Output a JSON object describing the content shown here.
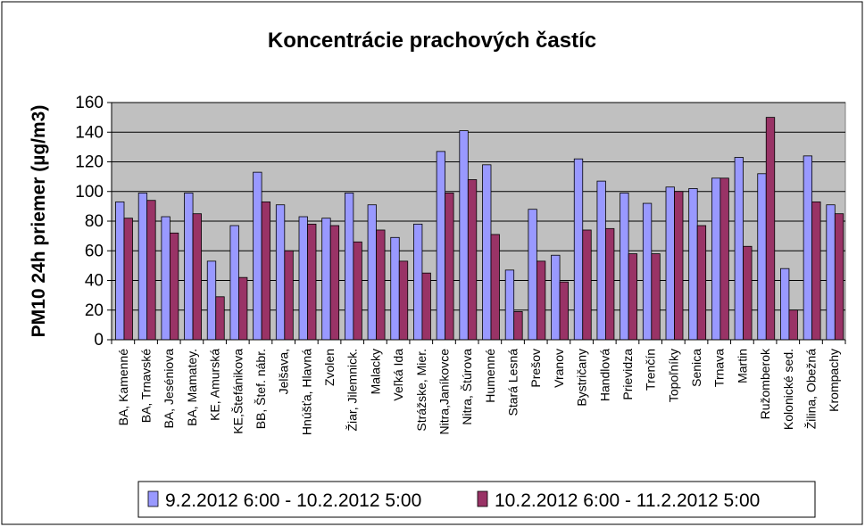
{
  "chart_data": {
    "type": "bar",
    "title": "Koncentrácie prachových častíc",
    "xlabel": "",
    "ylabel": "PM10 24h priemer (µg/m3)",
    "ylim": [
      0,
      160
    ],
    "yticks": [
      "0",
      "20",
      "40",
      "60",
      "80",
      "100",
      "120",
      "140",
      "160"
    ],
    "grid": true,
    "legend_position": "bottom",
    "categories": [
      "BA, Kamenné",
      "BA, Trnavské",
      "BA, Jeséniova",
      "BA, Mamatey.",
      "KE, Amurská",
      "KE,Štefánikova",
      "BB, Štef. nábr.",
      "Jelšava,",
      "Hnúšťa, Hlavná",
      "Zvolen",
      "Žiar, Jilemnick.",
      "Malacky",
      "Veľká Ida",
      "Strážske, Mier.",
      "Nitra,Janíkovce",
      "Nitra, Štúrova",
      "Humenné",
      "Stará Lesná",
      "Prešov",
      "Vranov",
      "Bystričany",
      "Handlová",
      "Prievidza",
      "Trenčín",
      "Topoľníky",
      "Senica",
      "Trnava",
      "Martin",
      "Ružomberok",
      "Kolonické sed.",
      "Žilina, Obežná",
      "Krompachy"
    ],
    "series": [
      {
        "name": "9.2.2012 6:00 - 10.2.2012 5:00",
        "color": "#9999ff",
        "values": [
          93,
          99,
          83,
          99,
          53,
          77,
          113,
          91,
          83,
          82,
          99,
          91,
          69,
          78,
          127,
          141,
          118,
          47,
          88,
          57,
          122,
          107,
          99,
          92,
          103,
          102,
          109,
          123,
          112,
          48,
          124,
          91
        ]
      },
      {
        "name": "10.2.2012 6:00 - 11.2.2012 5:00",
        "color": "#993366",
        "values": [
          82,
          94,
          72,
          85,
          29,
          42,
          93,
          60,
          78,
          77,
          66,
          74,
          53,
          45,
          99,
          108,
          71,
          19,
          53,
          39,
          74,
          75,
          58,
          58,
          100,
          77,
          109,
          63,
          150,
          20,
          93,
          85
        ]
      }
    ],
    "plot_background": "#c0c0c0"
  }
}
